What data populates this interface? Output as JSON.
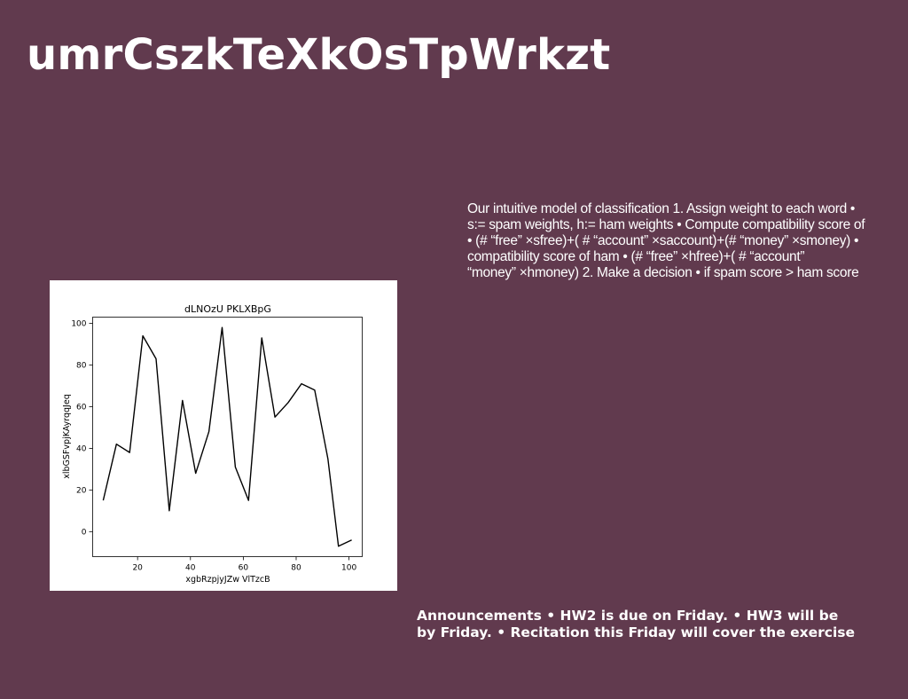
{
  "slide": {
    "title": "umrCszkTeXkOsTpWrkzt",
    "body_text": "Our intuitive model of classification 1. Assign weight to each word •\ns:= spam weights, h:= ham weights • Compute compatibility score of\n• (# “free” ×sfree)+( # “account” ×saccount)+(# “money” ×smoney) •\ncompatibility score of ham • (# “free” ×hfree)+( # “account”\n“money” ×hmoney) 2. Make a decision • if spam score > ham score",
    "announcements": "Announcements • HW2 is due on Friday. • HW3 will be\nby Friday. • Recitation this Friday will cover the exercise"
  },
  "colors": {
    "background": "#613a4e",
    "text": "#ffffff",
    "chart_line": "#000000"
  },
  "chart_data": {
    "type": "line",
    "title": "dLNOzU PKLXBpG",
    "xlabel": "xgbRzpjyJZw VlTzcB",
    "ylabel": "xlbGSFvpjKAyrqqJeq",
    "x": [
      7,
      12,
      17,
      22,
      27,
      32,
      37,
      42,
      47,
      52,
      57,
      62,
      67,
      72,
      77,
      82,
      87,
      92,
      96,
      101
    ],
    "values": [
      15,
      42,
      38,
      94,
      83,
      10,
      63,
      28,
      48,
      98,
      31,
      15,
      93,
      55,
      62,
      71,
      68,
      35,
      -7,
      -4
    ],
    "xticks": [
      20,
      40,
      60,
      80,
      100
    ],
    "yticks": [
      0,
      20,
      40,
      60,
      80,
      100
    ],
    "xlim": [
      3,
      105
    ],
    "ylim": [
      -12,
      103
    ],
    "grid": false,
    "legend": false
  }
}
